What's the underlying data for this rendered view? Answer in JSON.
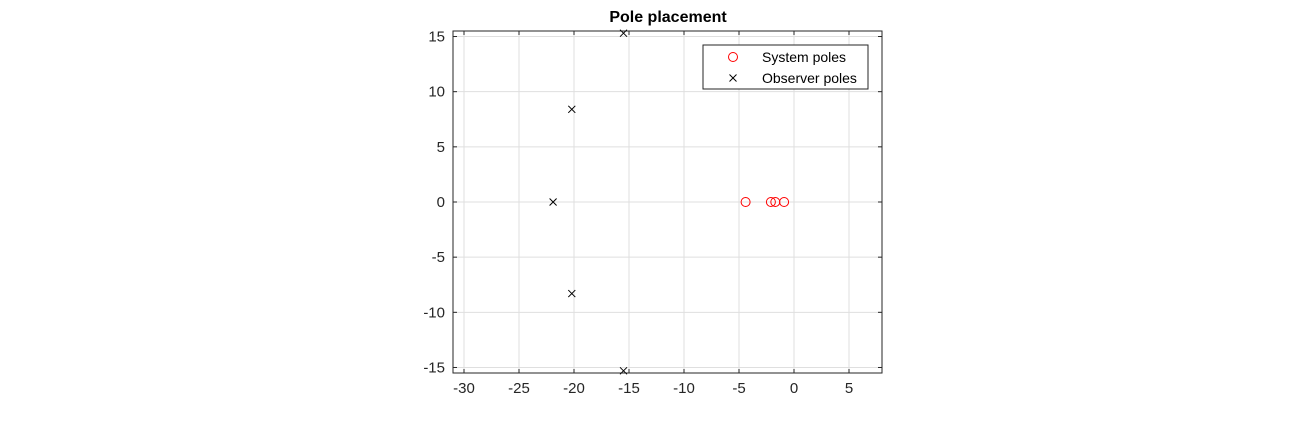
{
  "chart_data": {
    "type": "scatter",
    "title": "Pole placement",
    "xlabel": "",
    "ylabel": "",
    "xlim": [
      -31,
      8
    ],
    "ylim": [
      -15.5,
      15.5
    ],
    "xticks": [
      -30,
      -25,
      -20,
      -15,
      -10,
      -5,
      0,
      5
    ],
    "yticks": [
      -15,
      -10,
      -5,
      0,
      5,
      10,
      15
    ],
    "grid": true,
    "legend_position": "top-right",
    "series": [
      {
        "name": "System poles",
        "marker": "circle",
        "color": "#ff0000",
        "points": [
          {
            "x": -4.4,
            "y": 0
          },
          {
            "x": -2.1,
            "y": 0
          },
          {
            "x": -1.7,
            "y": 0
          },
          {
            "x": -0.9,
            "y": 0
          }
        ]
      },
      {
        "name": "Observer poles",
        "marker": "cross",
        "color": "#000000",
        "points": [
          {
            "x": -15.5,
            "y": 15.3
          },
          {
            "x": -20.2,
            "y": 8.4
          },
          {
            "x": -21.9,
            "y": 0
          },
          {
            "x": -20.2,
            "y": -8.3
          },
          {
            "x": -15.5,
            "y": -15.3
          }
        ]
      }
    ]
  }
}
